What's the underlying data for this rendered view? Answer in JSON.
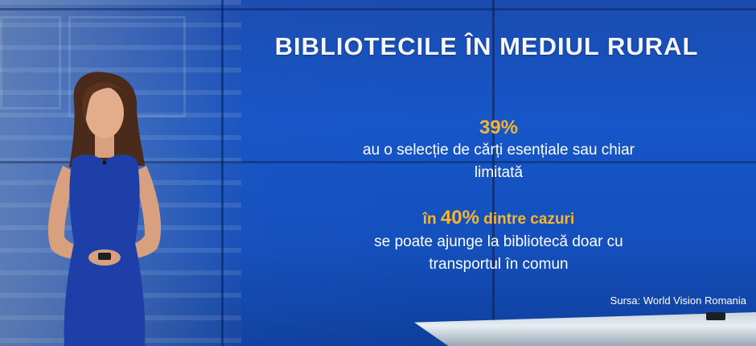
{
  "title": "BIBLIOTECILE ÎN MEDIUL RURAL",
  "stats": [
    {
      "highlight": "39%",
      "text_line1": "au o selecție de cărți esențiale sau chiar",
      "text_line2": "limitată"
    },
    {
      "highlight_prefix": "în",
      "highlight_pct": "40%",
      "highlight_suffix": "dintre cazuri",
      "text_line1": "se poate ajunge la bibliotecă doar cu",
      "text_line2": "transportul în comun"
    }
  ],
  "source": "Sursa: World Vision Romania",
  "colors": {
    "background_blue": "#1656c8",
    "highlight_orange": "#f7b52b",
    "text_white": "#ffffff",
    "dress_blue": "#1f3fa8"
  }
}
